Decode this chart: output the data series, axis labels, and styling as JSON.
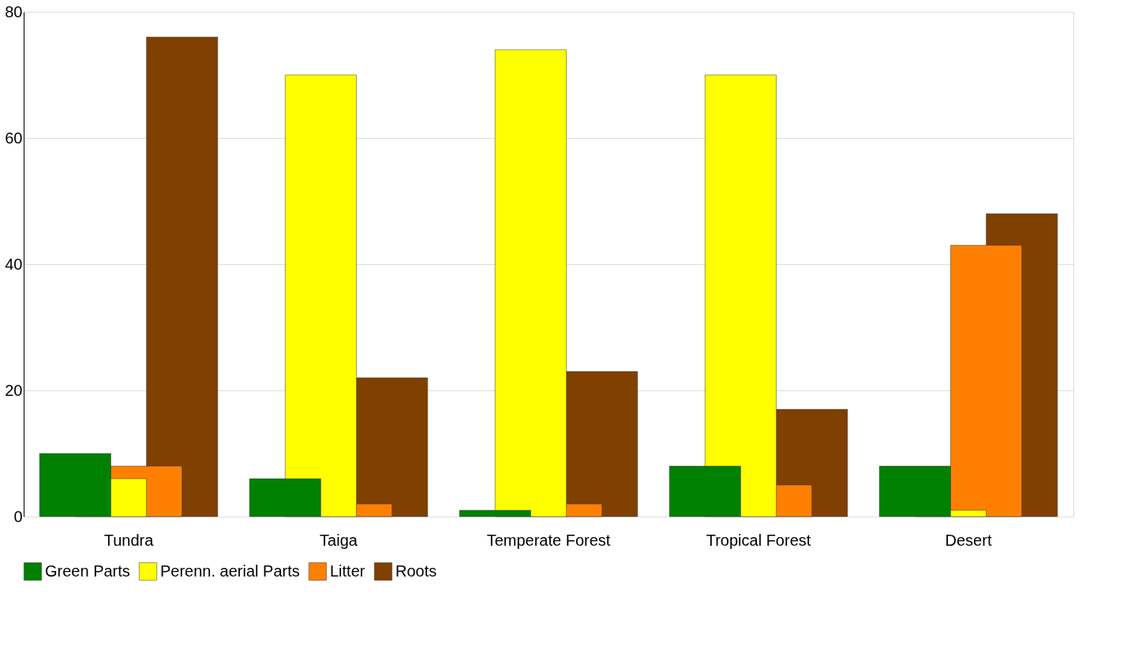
{
  "chart_data": {
    "type": "bar",
    "categories": [
      "Tundra",
      "Taiga",
      "Temperate Forest",
      "Tropical Forest",
      "Desert"
    ],
    "series": [
      {
        "name": "Green Parts",
        "color": "#008000",
        "values": [
          10,
          6,
          1,
          8,
          8
        ]
      },
      {
        "name": "Perenn. aerial Parts",
        "color": "#ffff00",
        "values": [
          6,
          70,
          74,
          70,
          1
        ]
      },
      {
        "name": "Litter",
        "color": "#ff8000",
        "values": [
          8,
          2,
          2,
          5,
          43
        ]
      },
      {
        "name": "Roots",
        "color": "#804000",
        "values": [
          76,
          22,
          23,
          17,
          48
        ]
      }
    ],
    "ylim": [
      0,
      80
    ],
    "yticks": [
      0,
      20,
      40,
      60,
      80
    ],
    "grid": "y",
    "legend": "bottom"
  }
}
